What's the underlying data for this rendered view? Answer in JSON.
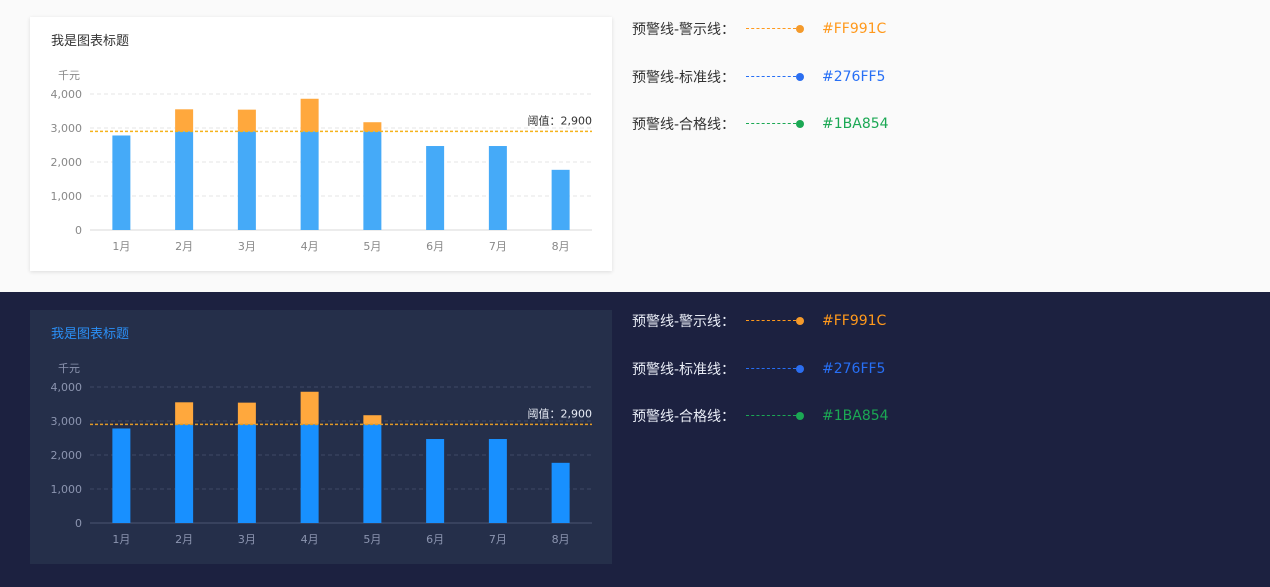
{
  "chart_data": {
    "type": "bar",
    "title": "我是图表标题",
    "ylabel": "千元",
    "categories": [
      "1月",
      "2月",
      "3月",
      "4月",
      "5月",
      "6月",
      "7月",
      "8月"
    ],
    "values": [
      2780,
      3550,
      3540,
      3860,
      3170,
      2470,
      2470,
      1770
    ],
    "ylim": [
      0,
      4000
    ],
    "yticks": [
      "0",
      "1,000",
      "2,000",
      "3,000",
      "4,000"
    ],
    "ytick_values": [
      0,
      1000,
      2000,
      3000,
      4000
    ],
    "threshold": 2900,
    "threshold_label": "阈值：2,900",
    "grid": true
  },
  "themes": {
    "light": {
      "bar": "#45aaf8",
      "over": "#ffa83d",
      "threshold": "#f5b31c",
      "axis_text": "#888888",
      "grid": "#e6e6e6",
      "baseline": "#d9d9d9",
      "label": "#333333"
    },
    "dark": {
      "bar": "#1890ff",
      "over": "#ffa83d",
      "threshold": "#e39a26",
      "axis_text": "#8c95b0",
      "grid": "#3f4a66",
      "baseline": "#4a5573",
      "label": "#e8ecf5"
    }
  },
  "legend": [
    {
      "label": "预警线-警示线：",
      "color": "#FF991C",
      "hex": "#FF991C",
      "dot": "#f49a2b"
    },
    {
      "label": "预警线-标准线：",
      "color": "#276FF5",
      "hex": "#276FF5",
      "dot": "#2b6ef0"
    },
    {
      "label": "预警线-合格线：",
      "color": "#1BA854",
      "hex": "#1BA854",
      "dot": "#1ba854"
    }
  ]
}
